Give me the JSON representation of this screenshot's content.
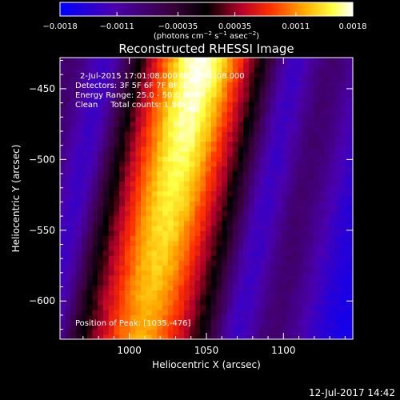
{
  "chart_data": {
    "type": "heatmap",
    "title": "Reconstructed RHESSI Image",
    "xlabel": "Heliocentric X (arcsec)",
    "ylabel": "Heliocentric Y (arcsec)",
    "xlim": [
      955,
      1145
    ],
    "ylim": [
      -627,
      -428
    ],
    "x_ticks": [
      1000,
      1050,
      1100
    ],
    "y_ticks": [
      -450,
      -500,
      -550,
      -600
    ],
    "colorbar": {
      "range": [
        -0.0018,
        0.0018
      ],
      "ticks": [
        -0.0018,
        -0.0011,
        -0.00035,
        0.00035,
        0.0011,
        0.0018
      ],
      "tick_labels": [
        "-0.0018",
        "-0.0011",
        "-0.00035",
        "0.00035",
        "0.0011",
        "0.0018"
      ],
      "unit_label": "(photons cm-2 s-1 asec-2)"
    },
    "annotations": [
      "2-Jul-2015 17:01:08.000 to 17:11:08.000",
      "Detectors: 3F 5F 6F 7F 8F 9F",
      "Energy Range: 25.0 - 50.0 keV",
      "Clean     Total counts: 1.8e+04",
      "Position of Peak: [1035,-476]"
    ],
    "peak": [
      1035,
      -476
    ],
    "band": {
      "ridge_top_x": 1042,
      "ridge_bottom_x": 1008,
      "ridge_at_y_top": -440,
      "ridge_at_y_bottom": -615,
      "band_halfwidth": 30,
      "side_lobe_offset": 62,
      "value_peak": 0.0018,
      "value_ridge_bottom": 0.0012
    }
  },
  "footer": {
    "timestamp": "12-Jul-2017 14:42"
  }
}
